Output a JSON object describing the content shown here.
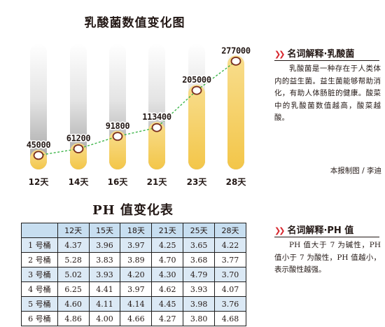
{
  "chart_data": [
    {
      "type": "line",
      "title": "乳酸菌数值变化图",
      "categories": [
        "12天",
        "14天",
        "16天",
        "21天",
        "23天",
        "28天"
      ],
      "values": [
        45000,
        61200,
        91800,
        113400,
        205000,
        277000
      ],
      "value_labels": [
        "45000",
        "61200",
        "91800",
        "113400",
        "205000",
        "277000"
      ],
      "ylim": [
        0,
        300000
      ],
      "colors": {
        "bar": "#f7d579",
        "line": "#3db54a",
        "marker": "#7a2e1e"
      }
    },
    {
      "type": "table",
      "title": "PH 值变化表",
      "columns": [
        "",
        "12天",
        "15天",
        "18天",
        "21天",
        "25天",
        "28天"
      ],
      "rows": [
        [
          "1 号桶",
          "4.37",
          "3.96",
          "3.97",
          "4.25",
          "3.65",
          "4.22"
        ],
        [
          "2 号桶",
          "5.28",
          "3.83",
          "3.89",
          "4.70",
          "3.68",
          "3.77"
        ],
        [
          "3 号桶",
          "5.02",
          "3.93",
          "4.20",
          "4.30",
          "4.79",
          "3.70"
        ],
        [
          "4 号桶",
          "6.25",
          "4.41",
          "3.97",
          "4.62",
          "3.93",
          "4.07"
        ],
        [
          "5 号桶",
          "4.60",
          "4.11",
          "4.14",
          "4.45",
          "3.98",
          "3.76"
        ],
        [
          "6 号桶",
          "4.86",
          "4.00",
          "4.66",
          "4.27",
          "3.80",
          "4.68"
        ]
      ]
    }
  ],
  "sidebar": {
    "lactobacillus": {
      "heading": "名词解释·乳酸菌",
      "text": "乳酸菌是一种存在于人类体内的益生菌。益生菌能够帮助消化，有助人体肠脏的健康。酸菜中的乳酸菌数值越高，酸菜越酸。"
    },
    "credit": "本报制图 / 李迪",
    "ph": {
      "heading": "名词解释·PH 值",
      "text": "PH 值大于 7 为碱性，PH 值小于 7 为酸性，PH 值越小，表示酸性越强。"
    }
  }
}
